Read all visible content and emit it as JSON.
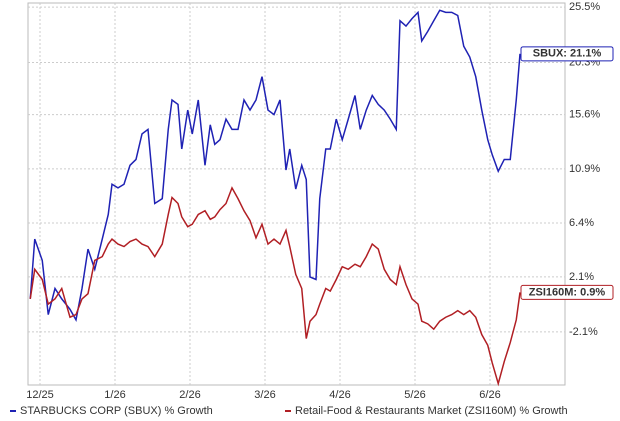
{
  "chart_data": {
    "type": "line",
    "scale": "log-growth",
    "grid": true,
    "x": [
      -0.13,
      -0.07,
      0.03,
      0.11,
      0.2,
      0.29,
      0.4,
      0.48,
      0.56,
      0.64,
      0.73,
      0.83,
      0.91,
      0.96,
      1.04,
      1.12,
      1.2,
      1.28,
      1.36,
      1.44,
      1.53,
      1.63,
      1.71,
      1.76,
      1.84,
      1.89,
      1.97,
      2.03,
      2.11,
      2.2,
      2.27,
      2.33,
      2.4,
      2.48,
      2.56,
      2.64,
      2.72,
      2.8,
      2.88,
      2.96,
      3.04,
      3.12,
      3.2,
      3.28,
      3.33,
      3.41,
      3.49,
      3.55,
      3.6,
      3.68,
      3.73,
      3.81,
      3.87,
      3.95,
      4.03,
      4.11,
      4.2,
      4.27,
      4.35,
      4.43,
      4.51,
      4.59,
      4.67,
      4.75,
      4.8,
      4.88,
      4.96,
      5.04,
      5.09,
      5.17,
      5.25,
      5.33,
      5.41,
      5.49,
      5.57,
      5.65,
      5.73,
      5.81,
      5.89,
      5.97,
      6.03,
      6.11,
      6.19,
      6.27,
      6.35,
      6.4
    ],
    "xlim": [
      -0.16,
      7.0
    ],
    "xticks": [
      {
        "value": 0,
        "label": "12/25"
      },
      {
        "value": 1,
        "label": "1/26"
      },
      {
        "value": 2,
        "label": "2/26"
      },
      {
        "value": 3,
        "label": "3/26"
      },
      {
        "value": 4,
        "label": "4/26"
      },
      {
        "value": 5,
        "label": "5/26"
      },
      {
        "value": 6,
        "label": "6/26"
      }
    ],
    "ylim": [
      -6.0,
      25.9
    ],
    "yticks": [
      {
        "value": 25.5,
        "label": "25.5%"
      },
      {
        "value": 20.3,
        "label": "20.3%"
      },
      {
        "value": 15.6,
        "label": "15.6%"
      },
      {
        "value": 10.9,
        "label": "10.9%"
      },
      {
        "value": 6.4,
        "label": "6.4%"
      },
      {
        "value": 2.1,
        "label": "2.1%"
      },
      {
        "value": -2.1,
        "label": "-2.1%"
      }
    ],
    "series": [
      {
        "name": "STARBUCKS CORP (SBUX) % Growth",
        "color": "#1f22b4",
        "end_label": "SBUX: 21.1%",
        "values": [
          0.4,
          5.1,
          3.4,
          -0.8,
          1.2,
          0.4,
          -0.4,
          -1.2,
          1.2,
          4.3,
          2.7,
          5.1,
          7.1,
          9.6,
          9.3,
          9.6,
          11.2,
          11.7,
          13.9,
          14.3,
          8.0,
          8.4,
          14.3,
          16.9,
          16.5,
          12.6,
          16.0,
          13.9,
          16.9,
          11.2,
          14.7,
          13.0,
          13.4,
          15.2,
          14.3,
          14.3,
          16.9,
          16.0,
          16.9,
          19.0,
          16.0,
          15.6,
          16.9,
          10.8,
          12.6,
          9.2,
          11.2,
          10.0,
          2.1,
          1.9,
          8.4,
          12.6,
          12.6,
          15.2,
          13.4,
          15.2,
          17.3,
          14.3,
          16.0,
          17.3,
          16.5,
          16.0,
          15.2,
          14.3,
          24.2,
          23.7,
          24.4,
          25.0,
          22.3,
          23.2,
          24.2,
          25.2,
          25.0,
          25.0,
          24.7,
          21.8,
          20.8,
          19.0,
          16.0,
          13.4,
          12.1,
          10.7,
          11.7,
          11.7,
          16.9,
          21.1
        ]
      },
      {
        "name": "Retail-Food & Restaurants Market (ZSI160M) % Growth",
        "color": "#b11f24",
        "end_label": "ZSI160M: 0.9%",
        "values": [
          0.4,
          2.7,
          1.9,
          0.0,
          0.4,
          1.2,
          -1.0,
          -0.8,
          0.4,
          0.8,
          3.4,
          3.7,
          4.7,
          5.1,
          4.7,
          4.5,
          4.9,
          5.1,
          4.7,
          4.5,
          3.7,
          4.7,
          7.1,
          8.5,
          8.0,
          6.9,
          6.1,
          6.3,
          7.1,
          7.4,
          6.7,
          6.9,
          7.5,
          8.0,
          9.3,
          8.4,
          7.4,
          6.6,
          5.2,
          6.3,
          4.7,
          5.1,
          4.7,
          5.8,
          4.5,
          2.3,
          1.2,
          -2.6,
          -1.3,
          -0.8,
          0.0,
          1.2,
          1.0,
          1.9,
          2.9,
          2.7,
          3.1,
          2.9,
          3.7,
          4.7,
          4.3,
          2.7,
          1.9,
          1.5,
          2.9,
          1.5,
          0.4,
          0.0,
          -1.3,
          -1.5,
          -1.9,
          -1.3,
          -1.0,
          -0.8,
          -0.5,
          -0.8,
          -0.5,
          -1.0,
          -2.3,
          -3.1,
          -4.4,
          -5.9,
          -4.3,
          -2.9,
          -1.2,
          0.9
        ]
      }
    ]
  }
}
